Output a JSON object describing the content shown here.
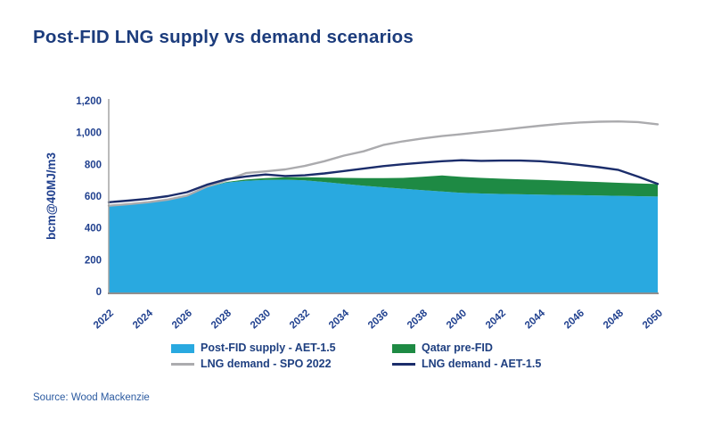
{
  "title": "Post-FID LNG supply vs demand scenarios",
  "source": "Source: Wood Mackenzie",
  "colors": {
    "title_text": "#1c3c7c",
    "axis_text": "#21418f",
    "legend_text": "#1e3f80",
    "source_text": "#2b5aa0",
    "axis_line": "#9e9e9e",
    "supply_area": "#29a9e0",
    "qatar_area": "#1e8a44",
    "spo_line": "#ababae",
    "aet_line": "#1b2d6b"
  },
  "chart_data": {
    "type": "area",
    "title": "Post-FID LNG supply vs demand scenarios",
    "xlabel": "",
    "ylabel": "bcm@40MJ/m3",
    "ylim": [
      0,
      1200
    ],
    "yticks": [
      0,
      200,
      400,
      600,
      800,
      1000,
      1200
    ],
    "ytick_labels": [
      "0",
      "200",
      "400",
      "600",
      "800",
      "1,000",
      "1,200"
    ],
    "xticks": [
      2022,
      2024,
      2026,
      2028,
      2030,
      2032,
      2034,
      2036,
      2038,
      2040,
      2042,
      2044,
      2046,
      2048,
      2050
    ],
    "grid": false,
    "legend_position": "bottom",
    "x": [
      2022,
      2023,
      2024,
      2025,
      2026,
      2027,
      2028,
      2029,
      2030,
      2031,
      2032,
      2033,
      2034,
      2035,
      2036,
      2037,
      2038,
      2039,
      2040,
      2041,
      2042,
      2043,
      2044,
      2045,
      2046,
      2047,
      2048,
      2049,
      2050
    ],
    "series": [
      {
        "name": "Post-FID supply - AET-1.5",
        "type": "area",
        "stacked": true,
        "color": "#29a9e0",
        "values": [
          545,
          552,
          562,
          578,
          602,
          655,
          686,
          697,
          702,
          704,
          699,
          689,
          677,
          666,
          656,
          647,
          638,
          630,
          621,
          617,
          614,
          612,
          610,
          608,
          606,
          604,
          602,
          600,
          598
        ]
      },
      {
        "name": "Qatar pre-FID",
        "type": "area",
        "stacked": true,
        "color": "#1e8a44",
        "values": [
          0,
          0,
          0,
          0,
          0,
          0,
          3,
          8,
          12,
          15,
          20,
          28,
          38,
          48,
          58,
          68,
          84,
          100,
          100,
          98,
          96,
          94,
          92,
          90,
          87,
          85,
          82,
          80,
          78
        ]
      },
      {
        "name": "LNG demand - SPO 2022",
        "type": "line",
        "stacked": false,
        "color": "#ababae",
        "values": [
          540,
          550,
          562,
          578,
          604,
          660,
          700,
          745,
          756,
          768,
          790,
          820,
          855,
          882,
          922,
          945,
          963,
          978,
          990,
          1003,
          1016,
          1030,
          1043,
          1055,
          1063,
          1068,
          1070,
          1066,
          1052
        ]
      },
      {
        "name": "LNG demand - AET-1.5",
        "type": "line",
        "stacked": false,
        "color": "#1b2d6b",
        "values": [
          562,
          572,
          584,
          600,
          625,
          672,
          706,
          724,
          736,
          727,
          731,
          743,
          758,
          773,
          789,
          801,
          811,
          820,
          826,
          822,
          824,
          824,
          820,
          810,
          797,
          782,
          765,
          723,
          677
        ]
      }
    ]
  },
  "legend": {
    "items": [
      {
        "label": "Post-FID supply - AET-1.5",
        "kind": "area",
        "color": "#29a9e0"
      },
      {
        "label": "Qatar pre-FID",
        "kind": "area",
        "color": "#1e8a44"
      },
      {
        "label": "LNG demand - SPO 2022",
        "kind": "line",
        "color": "#ababae"
      },
      {
        "label": "LNG demand - AET-1.5",
        "kind": "line",
        "color": "#1b2d6b"
      }
    ]
  }
}
